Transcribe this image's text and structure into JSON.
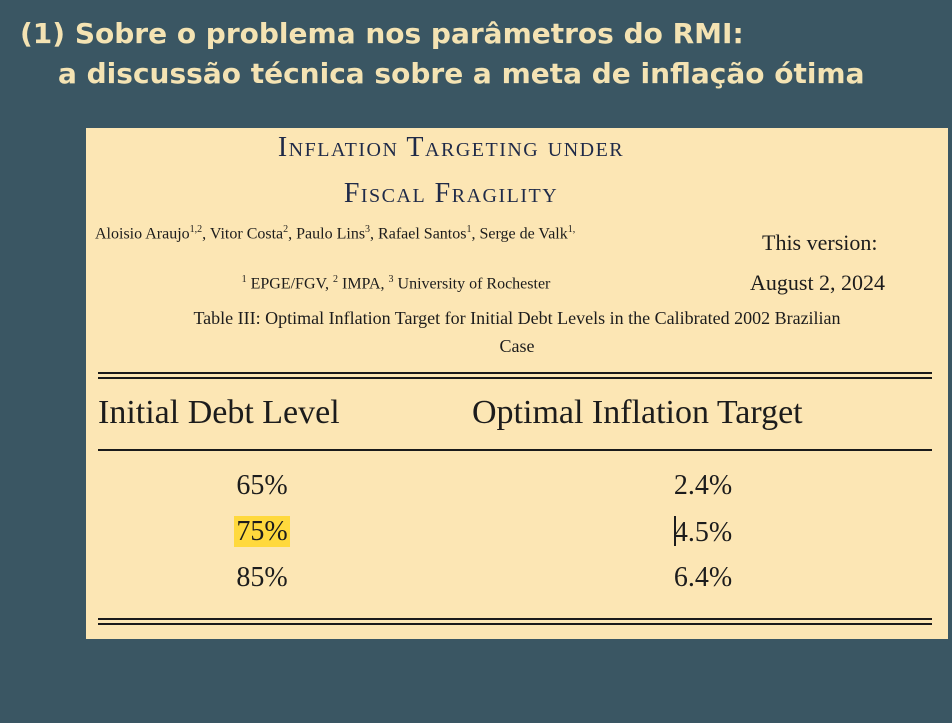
{
  "slide": {
    "title_line1": "(1) Sobre o problema nos parâmetros do RMI:",
    "title_line2": "a discussão técnica sobre a meta de inflação ótima"
  },
  "paper": {
    "title_line1": "Inflation Targeting under",
    "title_line2": "Fiscal Fragility",
    "authors": [
      {
        "name": "Aloisio Araujo",
        "sup": "1,2",
        "sep": ", "
      },
      {
        "name": "Vitor Costa",
        "sup": "2",
        "sep": ", "
      },
      {
        "name": "Paulo Lins",
        "sup": "3",
        "sep": ", "
      },
      {
        "name": "Rafael Santos",
        "sup": "1",
        "sep": ", "
      },
      {
        "name": "Serge de Valk",
        "sup": "1,",
        "sep": ""
      }
    ],
    "affiliations": [
      {
        "sup": "1",
        "name": "EPGE/FGV",
        "sep": ", "
      },
      {
        "sup": "2",
        "name": "IMPA",
        "sep": ", "
      },
      {
        "sup": "3",
        "name": "University of Rochester",
        "sep": ""
      }
    ],
    "version_label": "This version:",
    "version_date": "August 2, 2024"
  },
  "table": {
    "caption_line1": "Table III: Optimal Inflation Target for Initial Debt Levels in the Calibrated 2002 Brazilian",
    "caption_line2": "Case",
    "headers": [
      "Initial Debt Level",
      "Optimal Inflation Target"
    ],
    "rows": [
      {
        "debt": "65%",
        "target": "2.4%"
      },
      {
        "debt": "75%",
        "target": "4.5%"
      },
      {
        "debt": "85%",
        "target": "6.4%"
      }
    ],
    "highlight_color": "#ffd93d"
  }
}
